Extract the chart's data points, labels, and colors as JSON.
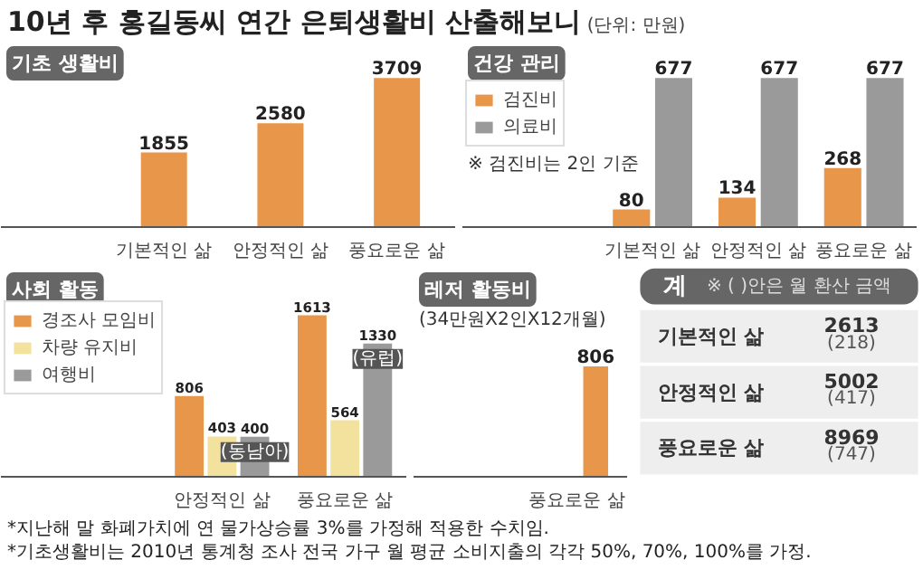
{
  "chart_data": [
    {
      "type": "other",
      "title": "10년 후 홍길동씨 연간 은퇴생활비 산출해보니",
      "subtitle": "(단위: 만원)",
      "annotations": [
        "*지난해 말 화폐가치에 연 물가상승률 3%를 가정해 적용한 수치임.",
        "*기초생활비는 2010년 통계청 조사 전국 가구 월 평균 소비지출의 각각 50%, 70%, 100%를 가정."
      ]
    },
    {
      "type": "bar",
      "title": "기초 생활비",
      "categories": [
        "기본적인 삶",
        "안정적인 삶",
        "풍요로운 삶"
      ],
      "values": [
        1855,
        2580,
        3709
      ],
      "color": "#e8964a",
      "data_labels": true
    },
    {
      "type": "bar",
      "title": "건강 관리",
      "categories": [
        "기본적인 삶",
        "안정적인 삶",
        "풍요로운 삶"
      ],
      "series": [
        {
          "name": "검진비",
          "color": "#e8964a",
          "values": [
            80,
            134,
            268
          ]
        },
        {
          "name": "의료비",
          "color": "#9a9a9a",
          "values": [
            677,
            677,
            677
          ]
        }
      ],
      "legend": "left",
      "data_labels": true,
      "annotations": [
        "※ 검진비는 2인 기준"
      ]
    },
    {
      "type": "bar",
      "title": "사회 활동",
      "categories": [
        "안정적인 삶",
        "풍요로운 삶"
      ],
      "series": [
        {
          "name": "경조사 모임비",
          "color": "#e8964a",
          "values": [
            806,
            1613
          ]
        },
        {
          "name": "차량 유지비",
          "color": "#f3e29e",
          "values": [
            403,
            564
          ]
        },
        {
          "name": "여행비",
          "color": "#9a9a9a",
          "values": [
            400,
            1330
          ]
        }
      ],
      "legend": "left",
      "data_labels": true,
      "annotations": [
        "(동남아)",
        "(유럽)"
      ]
    },
    {
      "type": "bar",
      "title": "레저 활동비",
      "categories": [
        "풍요로운 삶"
      ],
      "values": [
        806
      ],
      "color": "#e8964a",
      "data_labels": true,
      "subtitle": "(34만원X2인X12개월)"
    },
    {
      "type": "other",
      "title": "계",
      "subtitle": "※ ( )안은 월 환산 금액",
      "categories": [
        "기본적인 삶",
        "안정적인 삶",
        "풍요로운 삶"
      ],
      "values": [
        2613,
        5002,
        8969
      ],
      "data_labels": true,
      "annotations": [
        "(218)",
        "(417)",
        "(747)"
      ]
    }
  ]
}
